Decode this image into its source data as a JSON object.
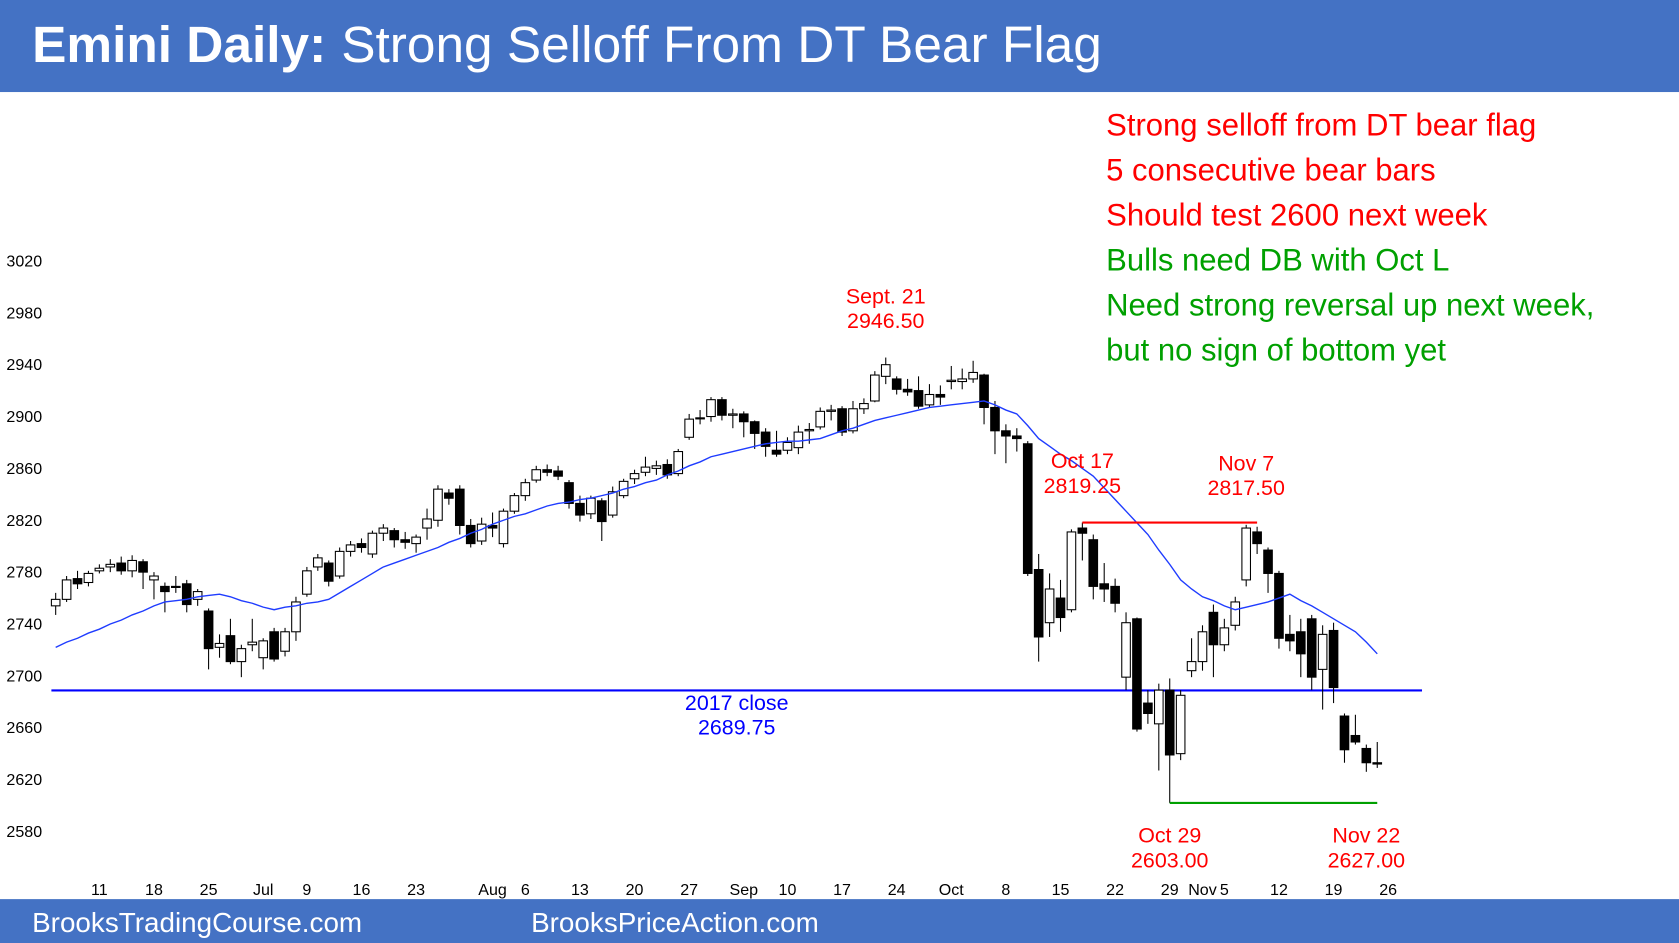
{
  "header": {
    "title_bold": "Emini Daily:",
    "title": "Strong Selloff From DT Bear Flag"
  },
  "footer": {
    "left": "BrooksTradingCourse.com",
    "right": "BrooksPriceAction.com"
  },
  "chart_data": {
    "type": "candlestick",
    "categories": [
      null,
      null,
      null,
      null,
      "11",
      null,
      null,
      null,
      null,
      "18",
      null,
      null,
      null,
      null,
      "25",
      null,
      null,
      null,
      null,
      "Jul",
      null,
      null,
      null,
      "9",
      null,
      null,
      null,
      null,
      "16",
      null,
      null,
      null,
      null,
      "23",
      null,
      null,
      null,
      null,
      null,
      null,
      "Aug",
      null,
      null,
      "6",
      null,
      null,
      null,
      null,
      "13",
      null,
      null,
      null,
      null,
      "20",
      null,
      null,
      null,
      null,
      "27",
      null,
      null,
      null,
      null,
      "Sep",
      null,
      null,
      null,
      "10",
      null,
      null,
      null,
      null,
      "17",
      null,
      null,
      null,
      null,
      "24",
      null,
      null,
      null,
      null,
      "Oct",
      null,
      null,
      null,
      null,
      "8",
      null,
      null,
      null,
      null,
      "15",
      null,
      null,
      null,
      null,
      "22",
      null,
      null,
      null,
      null,
      "29",
      null,
      null,
      "Nov",
      null,
      "5",
      null,
      null,
      null,
      null,
      "12",
      null,
      null,
      null,
      null,
      "19",
      null,
      null,
      null,
      null,
      "26"
    ],
    "open": [
      2755,
      2760,
      2776,
      2773,
      2782,
      2785,
      2788,
      2782,
      2789,
      2775,
      2770,
      2770,
      2772,
      2760,
      2751,
      2723,
      2732,
      2712,
      2725,
      2715,
      2735,
      2720,
      2735,
      2764,
      2785,
      2788,
      2778,
      2797,
      2803,
      2795,
      2811,
      2813,
      2806,
      2803,
      2815,
      2821,
      2842,
      2845,
      2817,
      2805,
      2817,
      2803,
      2828,
      2840,
      2852,
      2860,
      2859,
      2850,
      2834,
      2826,
      2836,
      2825,
      2840,
      2853,
      2858,
      2861,
      2864,
      2857,
      2885,
      2900,
      2901,
      2914,
      2902,
      2903,
      2897,
      2889,
      2875,
      2875,
      2877,
      2890,
      2893,
      2905,
      2907,
      2890,
      2907,
      2913,
      2932,
      2930,
      2922,
      2921,
      2910,
      2918,
      2928,
      2928,
      2930,
      2933,
      2908,
      2890,
      2886,
      2880,
      2783,
      2742,
      2761,
      2752,
      2815,
      2806,
      2772,
      2770,
      2700,
      2745,
      2680,
      2664,
      2690,
      2641,
      2705,
      2712,
      2750,
      2725,
      2740,
      2775,
      2812,
      2798,
      2780,
      2733,
      2735,
      2745,
      2706,
      2736,
      2670,
      2655,
      2645,
      2634,
      null
    ],
    "high": [
      2765,
      2778,
      2782,
      2782,
      2787,
      2791,
      2793,
      2794,
      2791,
      2781,
      2773,
      2778,
      2775,
      2768,
      2753,
      2733,
      2745,
      2725,
      2745,
      2730,
      2738,
      2738,
      2762,
      2785,
      2795,
      2790,
      2800,
      2805,
      2807,
      2813,
      2818,
      2815,
      2812,
      2810,
      2830,
      2848,
      2845,
      2848,
      2822,
      2823,
      2827,
      2830,
      2842,
      2853,
      2863,
      2864,
      2863,
      2852,
      2840,
      2840,
      2838,
      2847,
      2853,
      2860,
      2870,
      2867,
      2868,
      2876,
      2903,
      2906,
      2916,
      2916,
      2907,
      2905,
      2898,
      2892,
      2890,
      2885,
      2894,
      2896,
      2908,
      2910,
      2909,
      2913,
      2915,
      2936,
      2946.5,
      2932,
      2930,
      2932,
      2926,
      2925,
      2940,
      2938,
      2944,
      2934,
      2913,
      2895,
      2892,
      2882,
      2795,
      2780,
      2775,
      2814,
      2819.25,
      2810,
      2788,
      2776,
      2750,
      2746,
      2690,
      2695,
      2699,
      2690,
      2730,
      2740,
      2756,
      2745,
      2762,
      2817.5,
      2816,
      2800,
      2782,
      2748,
      2745,
      2748,
      2740,
      2742,
      2672,
      2671,
      2648,
      2650,
      null
    ],
    "low": [
      2748,
      2758,
      2768,
      2770,
      2780,
      2781,
      2779,
      2777,
      2768,
      2760,
      2750,
      2765,
      2750,
      2755,
      2706,
      2715,
      2710,
      2700,
      2720,
      2706,
      2712,
      2716,
      2728,
      2762,
      2782,
      2770,
      2776,
      2793,
      2796,
      2792,
      2805,
      2800,
      2799,
      2796,
      2806,
      2816,
      2833,
      2810,
      2800,
      2802,
      2808,
      2800,
      2826,
      2836,
      2850,
      2855,
      2852,
      2830,
      2820,
      2822,
      2805,
      2823,
      2838,
      2849,
      2855,
      2856,
      2853,
      2855,
      2883,
      2895,
      2897,
      2898,
      2892,
      2885,
      2876,
      2870,
      2870,
      2872,
      2872,
      2880,
      2891,
      2898,
      2886,
      2888,
      2903,
      2912,
      2926,
      2918,
      2917,
      2907,
      2908,
      2910,
      2922,
      2922,
      2927,
      2895,
      2872,
      2865,
      2874,
      2778,
      2712,
      2731,
      2735,
      2750,
      2790,
      2760,
      2758,
      2750,
      2690,
      2658,
      2664,
      2628,
      2603,
      2636,
      2700,
      2705,
      2700,
      2720,
      2736,
      2770,
      2795,
      2765,
      2722,
      2720,
      2700,
      2690,
      2675,
      2680,
      2634,
      2648,
      2627,
      2630,
      null
    ],
    "close": [
      2760,
      2775,
      2772,
      2780,
      2784,
      2787,
      2782,
      2790,
      2781,
      2778,
      2766,
      2770,
      2756,
      2766,
      2722,
      2726,
      2712,
      2722,
      2727,
      2728,
      2714,
      2735,
      2758,
      2782,
      2792,
      2774,
      2797,
      2802,
      2800,
      2811,
      2815,
      2806,
      2804,
      2808,
      2822,
      2845,
      2838,
      2817,
      2803,
      2818,
      2815,
      2828,
      2840,
      2850,
      2860,
      2858,
      2855,
      2834,
      2825,
      2838,
      2820,
      2843,
      2851,
      2857,
      2862,
      2863,
      2856,
      2874,
      2899,
      2900,
      2914,
      2902,
      2903,
      2897,
      2888,
      2878,
      2872,
      2881,
      2889,
      2891,
      2905,
      2906,
      2889,
      2907,
      2911,
      2933,
      2941,
      2922,
      2920,
      2909,
      2918,
      2916,
      2929,
      2930,
      2935,
      2908,
      2890,
      2886,
      2884,
      2780,
      2731,
      2768,
      2746,
      2812,
      2811,
      2770,
      2768,
      2757,
      2742,
      2660,
      2672,
      2690,
      2640,
      2686,
      2712,
      2735,
      2725,
      2738,
      2758,
      2815,
      2803,
      2780,
      2730,
      2728,
      2718,
      2700,
      2733,
      2692,
      2644,
      2650,
      2634,
      2633,
      null
    ],
    "up_color": "#ffffff",
    "down_color": "#000000",
    "wick_color": "#000000",
    "ma": {
      "color": "#1f3cff",
      "values": [
        2723,
        2727,
        2730,
        2734,
        2737,
        2741,
        2744,
        2748,
        2751,
        2755,
        2758,
        2759,
        2760,
        2762,
        2763,
        2764,
        2762,
        2759,
        2757,
        2754,
        2752,
        2754,
        2755,
        2757,
        2758,
        2760,
        2765,
        2770,
        2775,
        2780,
        2785,
        2788,
        2791,
        2794,
        2797,
        2800,
        2804,
        2807,
        2811,
        2814,
        2818,
        2821,
        2824,
        2826,
        2829,
        2832,
        2834,
        2835,
        2837,
        2838,
        2840,
        2842,
        2845,
        2847,
        2850,
        2852,
        2856,
        2859,
        2863,
        2866,
        2870,
        2872,
        2874,
        2876,
        2878,
        2880,
        2881,
        2882,
        2882,
        2883,
        2884,
        2887,
        2890,
        2892,
        2895,
        2898,
        2900,
        2902,
        2904,
        2906,
        2908,
        2909,
        2910,
        2911,
        2912,
        2913,
        2910,
        2906,
        2903,
        2894,
        2884,
        2878,
        2872,
        2867,
        2861,
        2855,
        2846,
        2837,
        2828,
        2819,
        2810,
        2798,
        2787,
        2775,
        2768,
        2762,
        2759,
        2755,
        2752,
        2754,
        2756,
        2758,
        2761,
        2764,
        2759,
        2755,
        2750,
        2745,
        2740,
        2735,
        2727,
        2718,
        null
      ]
    },
    "ylim": [
      2580,
      3020
    ],
    "yticks": [
      2580,
      2620,
      2660,
      2700,
      2740,
      2780,
      2820,
      2860,
      2900,
      2940,
      2980,
      3020
    ],
    "grid": false,
    "reference_line": {
      "value": 2689.75,
      "label": "2017 close",
      "value_label": "2689.75",
      "color": "#0000ff"
    },
    "annotations": [
      {
        "label": "Sept. 21",
        "value": 2946.5,
        "value_label": "2946.50",
        "kind": "high",
        "color": "#ff0000"
      },
      {
        "label": "Oct 17",
        "value": 2819.25,
        "value_label": "2819.25",
        "kind": "high",
        "color": "#ff0000"
      },
      {
        "label": "Nov 7",
        "value": 2817.5,
        "value_label": "2817.50",
        "kind": "high",
        "color": "#ff0000"
      },
      {
        "label": "Oct 29",
        "value": 2603,
        "value_label": "2603.00",
        "kind": "low",
        "color": "#ff0000"
      },
      {
        "label": "Nov 22",
        "value": 2627,
        "value_label": "2627.00",
        "kind": "low",
        "color": "#ff0000"
      }
    ],
    "segments": [
      {
        "from": 1,
        "to": 2,
        "color": "#ff0000"
      },
      {
        "from": 3,
        "to": 4,
        "color": "#00a000"
      }
    ],
    "notes": [
      {
        "text": "Strong selloff from DT bear flag",
        "color": "#ff0000"
      },
      {
        "text": "5 consecutive bear bars",
        "color": "#ff0000"
      },
      {
        "text": "Should test 2600 next week",
        "color": "#ff0000"
      },
      {
        "text": "Bulls need DB with Oct L",
        "color": "#00a000"
      },
      {
        "text": "Need strong reversal up next week,",
        "color": "#00a000"
      },
      {
        "text": "but no sign of bottom yet",
        "color": "#00a000"
      }
    ]
  }
}
